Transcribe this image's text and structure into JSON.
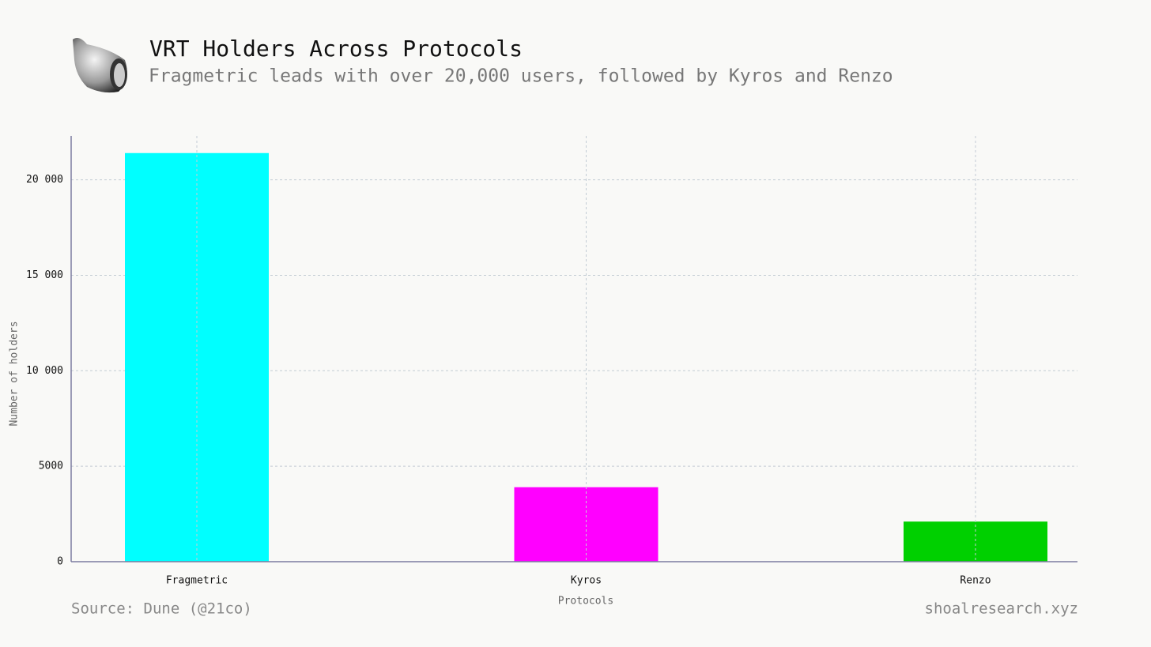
{
  "chart_data": {
    "type": "bar",
    "title": "VRT Holders Across Protocols",
    "subtitle": "Fragmetric leads with over 20,000 users, followed by Kyros and Renzo",
    "x_label": "Protocols",
    "y_label": "Number of holders",
    "categories": [
      "Fragmetric",
      "Kyros",
      "Renzo"
    ],
    "values": [
      21400,
      3900,
      2100
    ],
    "colors": [
      "#00ffff",
      "#ff00ff",
      "#00d000"
    ],
    "ylim": [
      0,
      22300
    ],
    "yticks": [
      0,
      5000,
      {
        "value": 10000,
        "label": "10 000"
      },
      {
        "value": 15000,
        "label": "15 000"
      },
      {
        "value": 20000,
        "label": "20 000"
      }
    ],
    "grid": true,
    "source": "Source: Dune (@21co)",
    "site": "shoalresearch.xyz"
  }
}
